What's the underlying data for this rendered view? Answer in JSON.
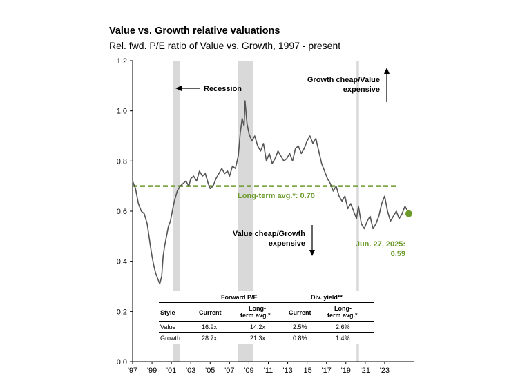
{
  "chart_data": {
    "type": "line",
    "title": "Value vs. Growth relative valuations",
    "subtitle": "Rel. fwd. P/E ratio of Value vs. Growth, 1997 - present",
    "xlabel": "",
    "ylabel": "",
    "ylim": [
      0.0,
      1.2
    ],
    "yticks": [
      "0.0",
      "0.2",
      "0.4",
      "0.6",
      "0.8",
      "1.0",
      "1.2"
    ],
    "xlim": [
      1997,
      2025.5
    ],
    "xticks": [
      "'97",
      "'99",
      "'01",
      "'03",
      "'05",
      "'07",
      "'09",
      "'11",
      "'13",
      "'15",
      "'17",
      "'19",
      "'21",
      "'23"
    ],
    "grid": false,
    "colors": {
      "line": "#555555",
      "avg": "#6c9b2c",
      "recession": "#d9d9d9",
      "endpoint": "#6c9b2c"
    },
    "recessions": [
      [
        2001.2,
        2001.85
      ],
      [
        2007.9,
        2009.45
      ],
      [
        2020.1,
        2020.35
      ]
    ],
    "long_term_avg": 0.7,
    "series": [
      {
        "x": [
          1997.0,
          1997.3,
          1997.6,
          1997.9,
          1998.2,
          1998.5,
          1998.8,
          1999.0,
          1999.2,
          1999.4,
          1999.6,
          1999.8,
          2000.0,
          2000.15,
          2000.3,
          2000.5,
          2000.7,
          2000.9,
          2001.1,
          2001.3,
          2001.6,
          2001.9,
          2002.2,
          2002.5,
          2002.8,
          2003.0,
          2003.3,
          2003.6,
          2003.9,
          2004.2,
          2004.5,
          2004.8,
          2005.0,
          2005.3,
          2005.6,
          2005.9,
          2006.2,
          2006.5,
          2006.8,
          2007.0,
          2007.3,
          2007.6,
          2007.9,
          2008.1,
          2008.3,
          2008.5,
          2008.6,
          2008.8,
          2009.0,
          2009.3,
          2009.6,
          2009.9,
          2010.2,
          2010.5,
          2010.8,
          2011.1,
          2011.4,
          2011.7,
          2012.0,
          2012.3,
          2012.6,
          2012.9,
          2013.2,
          2013.5,
          2013.8,
          2014.1,
          2014.4,
          2014.7,
          2015.0,
          2015.3,
          2015.6,
          2015.9,
          2016.2,
          2016.5,
          2016.8,
          2017.1,
          2017.4,
          2017.7,
          2018.0,
          2018.3,
          2018.6,
          2018.9,
          2019.2,
          2019.5,
          2019.8,
          2020.1,
          2020.3,
          2020.6,
          2020.9,
          2021.2,
          2021.5,
          2021.8,
          2022.1,
          2022.4,
          2022.7,
          2023.0,
          2023.3,
          2023.6,
          2023.9,
          2024.2,
          2024.5,
          2024.8,
          2025.1,
          2025.49
        ],
        "y": [
          0.72,
          0.69,
          0.63,
          0.6,
          0.59,
          0.55,
          0.47,
          0.42,
          0.38,
          0.35,
          0.33,
          0.31,
          0.34,
          0.42,
          0.46,
          0.5,
          0.54,
          0.56,
          0.6,
          0.64,
          0.68,
          0.7,
          0.71,
          0.72,
          0.7,
          0.73,
          0.74,
          0.72,
          0.76,
          0.74,
          0.75,
          0.71,
          0.69,
          0.7,
          0.73,
          0.75,
          0.77,
          0.75,
          0.76,
          0.74,
          0.78,
          0.77,
          0.82,
          0.91,
          0.97,
          0.94,
          1.04,
          0.95,
          0.91,
          0.88,
          0.9,
          0.86,
          0.84,
          0.87,
          0.8,
          0.83,
          0.79,
          0.81,
          0.84,
          0.82,
          0.8,
          0.81,
          0.83,
          0.8,
          0.85,
          0.86,
          0.83,
          0.85,
          0.88,
          0.9,
          0.87,
          0.89,
          0.84,
          0.79,
          0.76,
          0.73,
          0.71,
          0.68,
          0.7,
          0.66,
          0.64,
          0.66,
          0.61,
          0.63,
          0.6,
          0.57,
          0.62,
          0.55,
          0.53,
          0.56,
          0.58,
          0.53,
          0.55,
          0.58,
          0.63,
          0.66,
          0.6,
          0.56,
          0.58,
          0.6,
          0.57,
          0.59,
          0.62,
          0.59
        ]
      }
    ],
    "annotations": {
      "recession": "Recession",
      "growth_cheap_1": "Growth cheap/Value",
      "growth_cheap_2": "expensive",
      "value_cheap_1": "Value cheap/Growth",
      "value_cheap_2": "expensive",
      "avg_label": "Long-term avg.*: 0.70",
      "latest_1": "Jun. 27, 2025:",
      "latest_2": "0.59"
    },
    "table": {
      "group_pe": "Forward P/E",
      "group_div": "Div. yield**",
      "col_style": "Style",
      "col_current_pe": "Current",
      "col_avg_pe_1": "Long-",
      "col_avg_pe_2": "term avg.*",
      "col_current_div": "Current",
      "col_avg_div_1": "Long-",
      "col_avg_div_2": "term avg.*",
      "rows": [
        {
          "style": "Value",
          "pe_current": "16.9x",
          "pe_avg": "14.2x",
          "div_current": "2.5%",
          "div_avg": "2.6%"
        },
        {
          "style": "Growth",
          "pe_current": "28.7x",
          "pe_avg": "21.3x",
          "div_current": "0.8%",
          "div_avg": "1.4%"
        }
      ]
    }
  }
}
